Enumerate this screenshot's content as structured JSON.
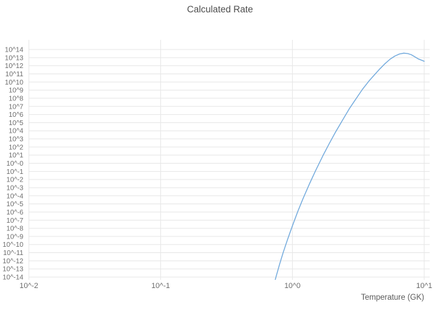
{
  "colors": {
    "line": "#6fa8dc",
    "grid": "#e7e7e7",
    "text": "#6e6e6e",
    "title": "#4d4d4d",
    "background": "#ffffff"
  },
  "chart_data": {
    "type": "line",
    "title": "Calculated Rate",
    "xlabel": "Temperature (GK)",
    "ylabel": "",
    "xscale": "log",
    "yscale": "log",
    "x_log_range": [
      -2,
      1
    ],
    "y_exp_range": [
      14,
      -14
    ],
    "x_ticks": [
      "10^-2",
      "10^-1",
      "10^0",
      "10^1"
    ],
    "x_tick_logs": [
      -2,
      -1,
      0,
      1
    ],
    "y_ticks": [
      "10^14",
      "10^13",
      "10^12",
      "10^11",
      "10^10",
      "10^9",
      "10^8",
      "10^7",
      "10^6",
      "10^5",
      "10^4",
      "10^3",
      "10^2",
      "10^1",
      "10^-0",
      "10^-1",
      "10^-2",
      "10^-3",
      "10^-4",
      "10^-5",
      "10^-6",
      "10^-7",
      "10^-8",
      "10^-9",
      "10^-10",
      "10^-11",
      "10^-12",
      "10^-13",
      "10^-14"
    ],
    "grid": true,
    "legend": "none",
    "series": [
      {
        "name": "rate",
        "points_T_log10rate": [
          [
            0.7,
            -15.8
          ],
          [
            0.75,
            -14.0
          ],
          [
            0.8,
            -12.4
          ],
          [
            0.85,
            -11.0
          ],
          [
            0.9,
            -9.8
          ],
          [
            0.95,
            -8.7
          ],
          [
            1.0,
            -7.7
          ],
          [
            1.1,
            -5.9
          ],
          [
            1.2,
            -4.4
          ],
          [
            1.35,
            -2.5
          ],
          [
            1.5,
            -0.9
          ],
          [
            1.7,
            0.9
          ],
          [
            1.9,
            2.4
          ],
          [
            2.1,
            3.7
          ],
          [
            2.4,
            5.3
          ],
          [
            2.7,
            6.7
          ],
          [
            3.0,
            7.8
          ],
          [
            3.4,
            9.1
          ],
          [
            3.8,
            10.1
          ],
          [
            4.2,
            10.9
          ],
          [
            4.6,
            11.6
          ],
          [
            5.0,
            12.2
          ],
          [
            5.5,
            12.8
          ],
          [
            6.0,
            13.2
          ],
          [
            6.5,
            13.45
          ],
          [
            7.0,
            13.55
          ],
          [
            7.5,
            13.5
          ],
          [
            8.0,
            13.35
          ],
          [
            8.5,
            13.1
          ],
          [
            9.0,
            12.85
          ],
          [
            9.5,
            12.7
          ],
          [
            10.0,
            12.55
          ]
        ]
      }
    ]
  }
}
